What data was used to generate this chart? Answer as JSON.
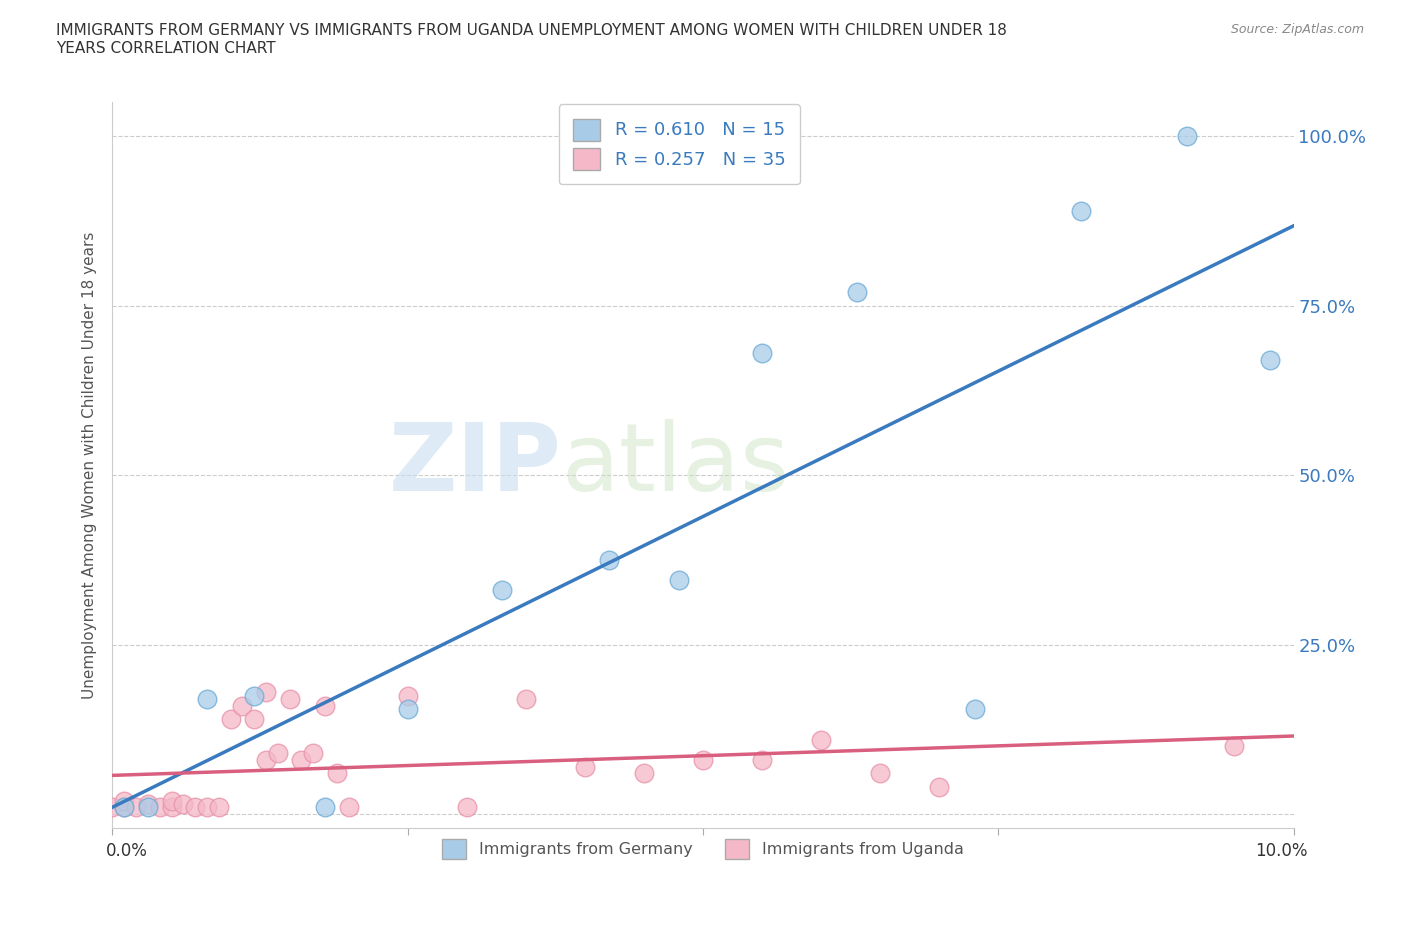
{
  "title": "IMMIGRANTS FROM GERMANY VS IMMIGRANTS FROM UGANDA UNEMPLOYMENT AMONG WOMEN WITH CHILDREN UNDER 18\nYEARS CORRELATION CHART",
  "source": "Source: ZipAtlas.com",
  "ylabel": "Unemployment Among Women with Children Under 18 years",
  "xlim": [
    0.0,
    0.1
  ],
  "ylim": [
    -0.02,
    1.05
  ],
  "yticks": [
    0.0,
    0.25,
    0.5,
    0.75,
    1.0
  ],
  "ytick_labels": [
    "",
    "25.0%",
    "50.0%",
    "75.0%",
    "100.0%"
  ],
  "germany_color": "#a8cce8",
  "uganda_color": "#f4b8c8",
  "germany_edge_color": "#6aaad4",
  "uganda_edge_color": "#e890a8",
  "germany_line_color": "#3a7abf",
  "uganda_line_color": "#d95f7f",
  "R_germany": 0.61,
  "N_germany": 15,
  "R_uganda": 0.257,
  "N_uganda": 35,
  "watermark_zip": "ZIP",
  "watermark_atlas": "atlas",
  "germany_points_x": [
    0.001,
    0.003,
    0.008,
    0.012,
    0.018,
    0.025,
    0.033,
    0.042,
    0.048,
    0.055,
    0.063,
    0.073,
    0.082,
    0.091,
    0.098
  ],
  "germany_points_y": [
    0.01,
    0.01,
    0.17,
    0.175,
    0.01,
    0.155,
    0.33,
    0.375,
    0.345,
    0.68,
    0.77,
    0.155,
    0.89,
    1.0,
    0.67
  ],
  "uganda_points_x": [
    0.0,
    0.001,
    0.001,
    0.002,
    0.003,
    0.004,
    0.005,
    0.005,
    0.006,
    0.007,
    0.008,
    0.009,
    0.01,
    0.011,
    0.012,
    0.013,
    0.013,
    0.014,
    0.015,
    0.016,
    0.017,
    0.018,
    0.019,
    0.02,
    0.025,
    0.03,
    0.035,
    0.04,
    0.045,
    0.05,
    0.055,
    0.06,
    0.065,
    0.07,
    0.095
  ],
  "uganda_points_y": [
    0.01,
    0.01,
    0.02,
    0.01,
    0.015,
    0.01,
    0.01,
    0.02,
    0.015,
    0.01,
    0.01,
    0.01,
    0.14,
    0.16,
    0.14,
    0.18,
    0.08,
    0.09,
    0.17,
    0.08,
    0.09,
    0.16,
    0.06,
    0.01,
    0.175,
    0.01,
    0.17,
    0.07,
    0.06,
    0.08,
    0.08,
    0.11,
    0.06,
    0.04,
    0.1
  ]
}
